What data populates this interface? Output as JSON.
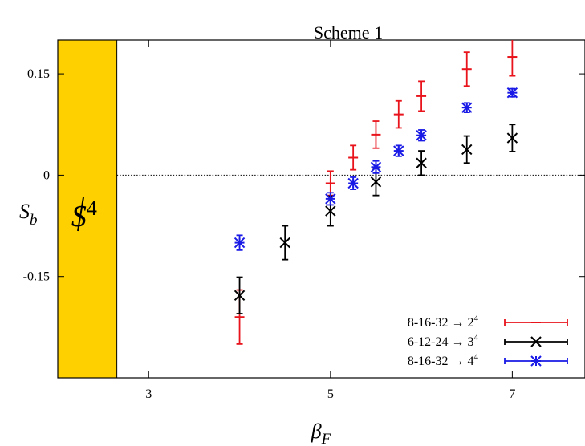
{
  "chart_data": {
    "type": "scatter",
    "title": "Scheme 1",
    "xlabel_main": "β",
    "xlabel_sub": "F",
    "ylabel_main": "S",
    "ylabel_sub": "b",
    "xlim": [
      2.0,
      7.8
    ],
    "ylim": [
      -0.3,
      0.2
    ],
    "xticks": [
      {
        "value": 3,
        "label": "3"
      },
      {
        "value": 5,
        "label": "5"
      },
      {
        "value": 7,
        "label": "7"
      }
    ],
    "yticks": [
      {
        "value": 0.15,
        "label": "0.15"
      },
      {
        "value": 0,
        "label": "0"
      },
      {
        "value": -0.15,
        "label": "-0.15"
      }
    ],
    "zero_line": true,
    "band": {
      "x_range": [
        2.0,
        2.65
      ],
      "color": "#FFD000",
      "label_main": "S",
      "label_sup": "4"
    },
    "legend_position": "bottom-right",
    "series": [
      {
        "name_main": "8-16-32 → 2",
        "name_sup": "4",
        "color": "#E8131B",
        "marker": "plus",
        "points": [
          {
            "x": 4.0,
            "y": -0.21,
            "err": 0.04
          },
          {
            "x": 5.0,
            "y": -0.012,
            "err": 0.018
          },
          {
            "x": 5.25,
            "y": 0.026,
            "err": 0.018
          },
          {
            "x": 5.5,
            "y": 0.06,
            "err": 0.02
          },
          {
            "x": 5.75,
            "y": 0.09,
            "err": 0.02
          },
          {
            "x": 6.0,
            "y": 0.117,
            "err": 0.022
          },
          {
            "x": 6.5,
            "y": 0.157,
            "err": 0.025
          },
          {
            "x": 7.0,
            "y": 0.175,
            "err": 0.028
          }
        ]
      },
      {
        "name_main": "6-12-24 → 3",
        "name_sup": "4",
        "color": "#000000",
        "marker": "cross",
        "points": [
          {
            "x": 4.0,
            "y": -0.178,
            "err": 0.027
          },
          {
            "x": 4.5,
            "y": -0.1,
            "err": 0.025
          },
          {
            "x": 5.0,
            "y": -0.053,
            "err": 0.022
          },
          {
            "x": 5.5,
            "y": -0.01,
            "err": 0.02
          },
          {
            "x": 6.0,
            "y": 0.018,
            "err": 0.018
          },
          {
            "x": 6.5,
            "y": 0.038,
            "err": 0.02
          },
          {
            "x": 7.0,
            "y": 0.055,
            "err": 0.02
          }
        ]
      },
      {
        "name_main": "8-16-32 → 4",
        "name_sup": "4",
        "color": "#1A1AE6",
        "marker": "star",
        "points": [
          {
            "x": 4.0,
            "y": -0.1,
            "err": 0.011
          },
          {
            "x": 5.0,
            "y": -0.035,
            "err": 0.009
          },
          {
            "x": 5.25,
            "y": -0.012,
            "err": 0.009
          },
          {
            "x": 5.5,
            "y": 0.012,
            "err": 0.009
          },
          {
            "x": 5.75,
            "y": 0.036,
            "err": 0.008
          },
          {
            "x": 6.0,
            "y": 0.059,
            "err": 0.008
          },
          {
            "x": 6.5,
            "y": 0.1,
            "err": 0.007
          },
          {
            "x": 7.0,
            "y": 0.122,
            "err": 0.006
          }
        ]
      }
    ]
  }
}
